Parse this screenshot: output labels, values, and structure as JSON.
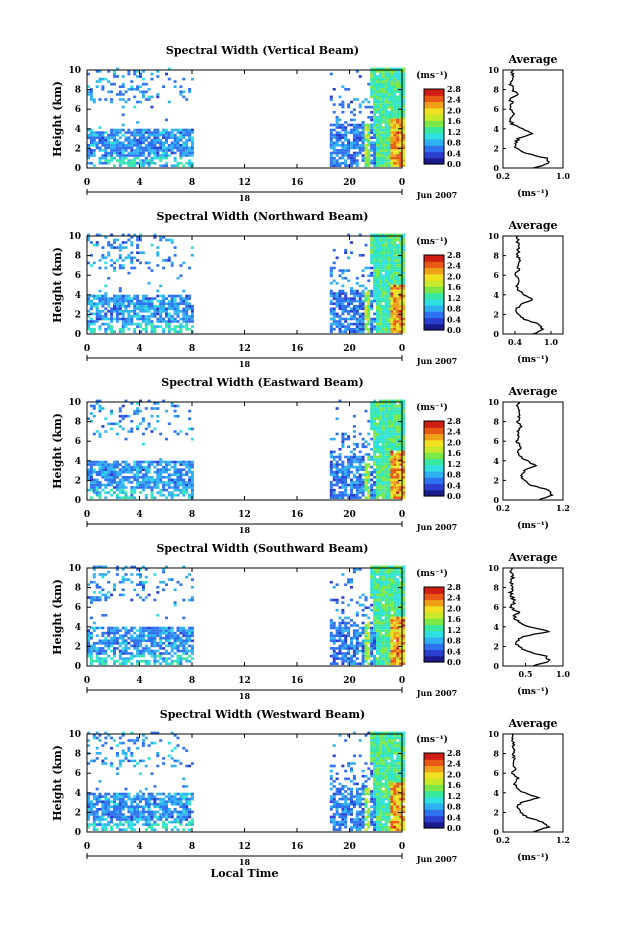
{
  "figure": {
    "bottom_xlabel": "Local Time",
    "date_label": "Jun 2007",
    "day_label": "18",
    "unit_label": "(ms⁻¹)",
    "avg_title": "Average",
    "avg_unit": "(ms⁻¹)",
    "ylabel": "Height (km)",
    "xticks": [
      "0",
      "4",
      "8",
      "12",
      "16",
      "20",
      "0"
    ],
    "yticks": [
      "0",
      "2",
      "4",
      "6",
      "8",
      "10"
    ],
    "colorbar_ticks": [
      "0.0",
      "0.4",
      "0.8",
      "1.2",
      "1.6",
      "2.0",
      "2.4",
      "2.8"
    ],
    "colormap": [
      "#1a1a8c",
      "#2a3fd0",
      "#2f72f0",
      "#2fb0f0",
      "#2fe0e0",
      "#39e8a0",
      "#7de845",
      "#c8e82a",
      "#f0e020",
      "#f0a018",
      "#e85a14",
      "#d01e14"
    ]
  },
  "chart_data": [
    {
      "type": "heatmap",
      "title": "Spectral Width (Vertical Beam)",
      "xlabel": "",
      "ylabel": "Height (km)",
      "xlim": [
        0,
        24
      ],
      "ylim": [
        0,
        10
      ],
      "clim": [
        0.0,
        2.8
      ],
      "x_tick_labels": [
        "0",
        "4",
        "8",
        "12",
        "16",
        "20",
        "0"
      ],
      "avg_profile": {
        "xlim": [
          0.2,
          1.0
        ],
        "x_ticks": [
          "0.2",
          "1.0"
        ],
        "x": [
          0.6,
          0.82,
          0.78,
          0.5,
          0.38,
          0.36,
          0.4,
          0.58,
          0.45,
          0.32,
          0.3,
          0.36,
          0.28,
          0.32,
          0.3,
          0.38,
          0.33,
          0.3,
          0.35,
          0.32,
          0.34
        ],
        "y": [
          0.0,
          0.5,
          1.0,
          1.5,
          2.0,
          2.5,
          3.0,
          3.5,
          4.0,
          4.5,
          5.0,
          5.5,
          6.0,
          6.5,
          7.0,
          7.5,
          8.0,
          8.5,
          9.0,
          9.5,
          10.0
        ]
      }
    },
    {
      "type": "heatmap",
      "title": "Spectral Width (Northward Beam)",
      "xlabel": "",
      "ylabel": "Height (km)",
      "xlim": [
        0,
        24
      ],
      "ylim": [
        0,
        10
      ],
      "clim": [
        0.0,
        2.8
      ],
      "x_tick_labels": [
        "0",
        "4",
        "8",
        "12",
        "16",
        "20",
        "0"
      ],
      "avg_profile": {
        "xlim": [
          0.2,
          1.2
        ],
        "x_ticks": [
          "0.4",
          "1.0"
        ],
        "x": [
          0.7,
          0.85,
          0.8,
          0.55,
          0.45,
          0.42,
          0.48,
          0.7,
          0.55,
          0.45,
          0.42,
          0.48,
          0.4,
          0.46,
          0.44,
          0.5,
          0.43,
          0.46,
          0.45,
          0.44,
          0.45
        ],
        "y": [
          0.0,
          0.5,
          1.0,
          1.5,
          2.0,
          2.5,
          3.0,
          3.5,
          4.0,
          4.5,
          5.0,
          5.5,
          6.0,
          6.5,
          7.0,
          7.5,
          8.0,
          8.5,
          9.0,
          9.5,
          10.0
        ]
      }
    },
    {
      "type": "heatmap",
      "title": "Spectral Width (Eastward Beam)",
      "xlabel": "",
      "ylabel": "Height (km)",
      "xlim": [
        0,
        24
      ],
      "ylim": [
        0,
        10
      ],
      "clim": [
        0.0,
        2.8
      ],
      "x_tick_labels": [
        "0",
        "4",
        "8",
        "12",
        "16",
        "20",
        "0"
      ],
      "avg_profile": {
        "xlim": [
          0.2,
          1.2
        ],
        "x_ticks": [
          "0.2",
          "1.2"
        ],
        "x": [
          0.8,
          1.02,
          0.98,
          0.68,
          0.55,
          0.5,
          0.56,
          0.74,
          0.6,
          0.48,
          0.45,
          0.5,
          0.42,
          0.47,
          0.44,
          0.5,
          0.45,
          0.46,
          0.48,
          0.45,
          0.46
        ],
        "y": [
          0.0,
          0.5,
          1.0,
          1.5,
          2.0,
          2.5,
          3.0,
          3.5,
          4.0,
          4.5,
          5.0,
          5.5,
          6.0,
          6.5,
          7.0,
          7.5,
          8.0,
          8.5,
          9.0,
          9.5,
          10.0
        ]
      }
    },
    {
      "type": "heatmap",
      "title": "Spectral Width (Southward Beam)",
      "xlabel": "",
      "ylabel": "Height (km)",
      "xlim": [
        0,
        24
      ],
      "ylim": [
        0,
        10
      ],
      "clim": [
        0.0,
        2.8
      ],
      "x_tick_labels": [
        "0",
        "4",
        "8",
        "12",
        "16",
        "20",
        "0"
      ],
      "avg_profile": {
        "xlim": [
          0.2,
          1.0
        ],
        "x_ticks": [
          "0.5",
          "1.0"
        ],
        "x": [
          0.6,
          0.82,
          0.78,
          0.52,
          0.4,
          0.38,
          0.45,
          0.82,
          0.55,
          0.4,
          0.35,
          0.4,
          0.3,
          0.36,
          0.32,
          0.3,
          0.34,
          0.3,
          0.33,
          0.31,
          0.32
        ],
        "y": [
          0.0,
          0.5,
          1.0,
          1.5,
          2.0,
          2.5,
          3.0,
          3.5,
          4.0,
          4.5,
          5.0,
          5.5,
          6.0,
          6.5,
          7.0,
          7.5,
          8.0,
          8.5,
          9.0,
          9.5,
          10.0
        ]
      }
    },
    {
      "type": "heatmap",
      "title": "Spectral Width (Westward Beam)",
      "xlabel": "Local Time",
      "ylabel": "Height (km)",
      "xlim": [
        0,
        24
      ],
      "ylim": [
        0,
        10
      ],
      "clim": [
        0.0,
        2.8
      ],
      "x_tick_labels": [
        "0",
        "4",
        "8",
        "12",
        "16",
        "20",
        "0"
      ],
      "avg_profile": {
        "xlim": [
          0.2,
          1.2
        ],
        "x_ticks": [
          "0.2",
          "1.2"
        ],
        "x": [
          0.7,
          0.95,
          0.88,
          0.6,
          0.48,
          0.44,
          0.5,
          0.78,
          0.55,
          0.42,
          0.4,
          0.45,
          0.36,
          0.4,
          0.37,
          0.4,
          0.36,
          0.38,
          0.37,
          0.36,
          0.37
        ],
        "y": [
          0.0,
          0.5,
          1.0,
          1.5,
          2.0,
          2.5,
          3.0,
          3.5,
          4.0,
          4.5,
          5.0,
          5.5,
          6.0,
          6.5,
          7.0,
          7.5,
          8.0,
          8.5,
          9.0,
          9.5,
          10.0
        ]
      }
    }
  ]
}
